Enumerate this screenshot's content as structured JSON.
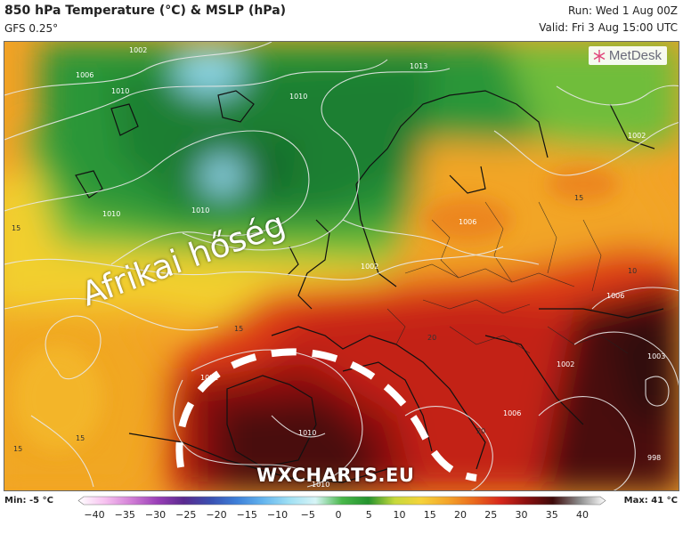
{
  "header": {
    "title": "850 hPa Temperature (°C) & MSLP (hPa)",
    "model": "GFS 0.25°",
    "run": "Run: Wed 1 Aug 00Z",
    "valid": "Valid: Fri 3 Aug 15:00 UTC"
  },
  "logo": {
    "text": "MetDesk",
    "icon": "metdesk-snowflake-icon"
  },
  "overlay": {
    "heat_label": "Afrikai hőség",
    "watermark": "WXCHARTS.EU"
  },
  "isobars": [
    {
      "label": "1002"
    },
    {
      "label": "1006"
    },
    {
      "label": "1010"
    },
    {
      "label": "1010"
    },
    {
      "label": "1010"
    },
    {
      "label": "1010"
    },
    {
      "label": "1013"
    },
    {
      "label": "1002"
    },
    {
      "label": "1006"
    },
    {
      "label": "1012"
    },
    {
      "label": "1010"
    },
    {
      "label": "1006"
    },
    {
      "label": "1002"
    },
    {
      "label": "998"
    },
    {
      "label": "1010"
    },
    {
      "label": "1006"
    },
    {
      "label": "1002"
    },
    {
      "label": "1003"
    }
  ],
  "temp_labels": [
    {
      "label": "15"
    },
    {
      "label": "15"
    },
    {
      "label": "15"
    },
    {
      "label": "15"
    },
    {
      "label": "15"
    },
    {
      "label": "20"
    },
    {
      "label": "20"
    },
    {
      "label": "10"
    }
  ],
  "scale": {
    "min_label": "Min: -5 °C",
    "max_label": "Max: 41 °C",
    "ticks": [
      "−40",
      "−35",
      "−30",
      "−25",
      "−20",
      "−15",
      "−10",
      "−5",
      "0",
      "5",
      "10",
      "15",
      "20",
      "25",
      "30",
      "35",
      "40"
    ],
    "colors": [
      "#ffffff",
      "#f7c2f0",
      "#d27fd6",
      "#9a3fb7",
      "#5a2a8f",
      "#3a4fb0",
      "#3d7fd8",
      "#63b4ee",
      "#9fe0f4",
      "#d7f4f6",
      "#49b84a",
      "#24932e",
      "#c6d93b",
      "#f5d33a",
      "#f4a52a",
      "#ea6a1d",
      "#d7281b",
      "#8b1010",
      "#3e0a0a",
      "#8b8b8b",
      "#ffffff"
    ]
  },
  "palette": {
    "deep_green": "#1d7a32",
    "green": "#2f9a3a",
    "light_green": "#6cbf3e",
    "yellow": "#f2d12f",
    "orange": "#f2a226",
    "dark_orange": "#ea7520",
    "red": "#d43017",
    "dark_red": "#8e1212",
    "maroon": "#3c0b0b",
    "cyan": "#8fd8ea"
  }
}
